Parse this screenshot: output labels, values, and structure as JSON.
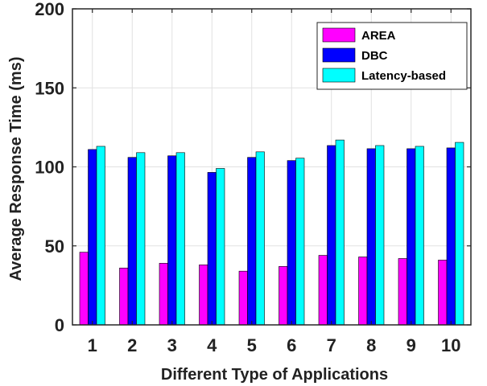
{
  "chart_data": {
    "type": "bar",
    "title": "",
    "xlabel": "Different Type of Applications",
    "ylabel": "Average Response Time (ms)",
    "ylim": [
      0,
      200
    ],
    "yticks": [
      0,
      50,
      100,
      150,
      200
    ],
    "categories": [
      "1",
      "2",
      "3",
      "4",
      "5",
      "6",
      "7",
      "8",
      "9",
      "10"
    ],
    "grid": true,
    "legend_position": "top-right",
    "series": [
      {
        "name": "AREA",
        "color": "#FF00FF",
        "values": [
          46,
          36,
          39,
          38,
          34,
          37,
          44,
          43,
          42,
          41
        ]
      },
      {
        "name": "DBC",
        "color": "#0000FF",
        "values": [
          111,
          106,
          107,
          96.5,
          106,
          104,
          113.5,
          111.5,
          111.5,
          112
        ]
      },
      {
        "name": "Latency-based",
        "color": "#00FFFF",
        "values": [
          113,
          109,
          109,
          99,
          109.5,
          105.5,
          117,
          113.5,
          113,
          115.5
        ]
      }
    ]
  }
}
